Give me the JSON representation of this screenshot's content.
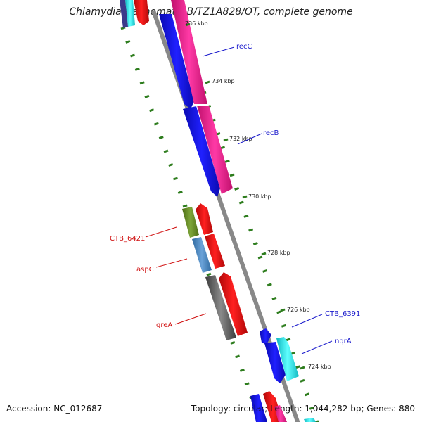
{
  "header": {
    "title": "Chlamydia trachomatis B/TZ1A828/OT, complete genome"
  },
  "footer": {
    "accession": "Accession: NC_012687",
    "stats": "Topology: circular; Length: 1,044,282 bp; Genes: 880"
  },
  "colors": {
    "backbone": "#888888",
    "tick": "#2e7d1e",
    "forward_label": "#1a1acc",
    "reverse_label": "#d01010",
    "blue": "#1010e8",
    "magenta": "#f0188c",
    "red": "#ee1010",
    "cyan": "#18e8f0",
    "olive": "#6b8e23",
    "steelblue": "#4a86c0",
    "gray": "#666666"
  },
  "ruler": {
    "ticks": [
      {
        "label": "736 kbp"
      },
      {
        "label": "734 kbp"
      },
      {
        "label": "732 kbp"
      },
      {
        "label": "730 kbp"
      },
      {
        "label": "728 kbp"
      },
      {
        "label": "726 kbp"
      },
      {
        "label": "724 kbp"
      }
    ]
  },
  "gene_labels": [
    {
      "text": "recC",
      "strand": "forward"
    },
    {
      "text": "recB",
      "strand": "forward"
    },
    {
      "text": "CTB_6421",
      "strand": "reverse"
    },
    {
      "text": "aspC",
      "strand": "reverse"
    },
    {
      "text": "greA",
      "strand": "reverse"
    },
    {
      "text": "CTB_6391",
      "strand": "forward"
    },
    {
      "text": "nqrA",
      "strand": "forward"
    }
  ]
}
